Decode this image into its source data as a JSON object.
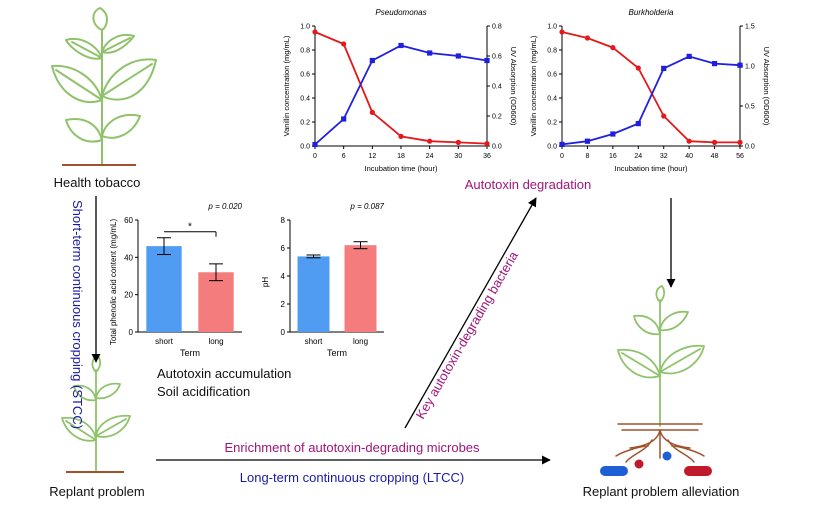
{
  "colors": {
    "plant_green": "#8fc36b",
    "plant_vein": "#7cb35a",
    "soil": "#a0522d",
    "red_series": "#e31a1c",
    "blue_series": "#1f1fe0",
    "bar_blue": "#4f9cf2",
    "bar_pink": "#f47c7c",
    "purple_text": "#a0157a",
    "blue_text": "#1a1aa8"
  },
  "labels": {
    "health_tobacco": "Health tobacco",
    "stcc": "Short-term continuous cropping (STCC)",
    "replant_problem": "Replant problem",
    "replant_alleviation": "Replant problem alleviation",
    "autotoxin_degradation": "Autotoxin degradation",
    "autotoxin_accumulation": "Autotoxin accumulation",
    "soil_acidification": "Soil acidification",
    "key_bacteria": "Key autotoxin-degrading bacteria",
    "enrichment": "Enrichment of autotoxin-degrading microbes",
    "ltcc": "Long-term continuous cropping (LTCC)"
  },
  "chart_data": [
    {
      "type": "line",
      "title": "Pseudomonas",
      "xlabel": "Incubation time (hour)",
      "ylabel": "Vanillin concentration (mg/mL)",
      "y2label": "UV Absorption (OD600)",
      "x": [
        0,
        6,
        12,
        18,
        24,
        30,
        36
      ],
      "xlim": [
        0,
        36
      ],
      "ylim": [
        0,
        1.0
      ],
      "y2lim": [
        0,
        0.8
      ],
      "yticks": [
        "0.0",
        "0.2",
        "0.4",
        "0.6",
        "0.8",
        "1.0"
      ],
      "y2ticks": [
        "0.0",
        "0.2",
        "0.4",
        "0.6",
        "0.8"
      ],
      "series": [
        {
          "name": "Vanillin concentration",
          "axis": "left",
          "color": "#e31a1c",
          "marker": "circle",
          "values": [
            0.95,
            0.85,
            0.28,
            0.08,
            0.04,
            0.03,
            0.02
          ]
        },
        {
          "name": "UV Absorption",
          "axis": "right",
          "color": "#1f1fe0",
          "marker": "square",
          "values": [
            0.01,
            0.18,
            0.57,
            0.67,
            0.62,
            0.6,
            0.57
          ]
        }
      ]
    },
    {
      "type": "line",
      "title": "Burkholderia",
      "xlabel": "Incubation time (hour)",
      "ylabel": "Vanillin concentration (mg/mL)",
      "y2label": "UV Absorption (OD600)",
      "x": [
        0,
        8,
        16,
        24,
        32,
        40,
        48,
        56
      ],
      "xlim": [
        0,
        56
      ],
      "ylim": [
        0,
        1.0
      ],
      "y2lim": [
        0,
        1.5
      ],
      "yticks": [
        "0.0",
        "0.2",
        "0.4",
        "0.6",
        "0.8",
        "1.0"
      ],
      "y2ticks": [
        "0.0",
        "0.5",
        "1.0",
        "1.5"
      ],
      "series": [
        {
          "name": "Vanillin concentration",
          "axis": "left",
          "color": "#e31a1c",
          "marker": "circle",
          "values": [
            0.95,
            0.9,
            0.82,
            0.65,
            0.25,
            0.04,
            0.03,
            0.03
          ]
        },
        {
          "name": "UV Absorption",
          "axis": "right",
          "color": "#1f1fe0",
          "marker": "square",
          "values": [
            0.02,
            0.06,
            0.15,
            0.28,
            0.97,
            1.12,
            1.03,
            1.01
          ]
        }
      ]
    },
    {
      "type": "bar",
      "title": "p = 0.020",
      "significance": "*",
      "xlabel": "Term",
      "ylabel": "Total phenolic acid content (mg/mL)",
      "categories": [
        "short",
        "long"
      ],
      "values": [
        46,
        32
      ],
      "errors": [
        4.5,
        4.5
      ],
      "ylim": [
        0,
        60
      ],
      "yticks": [
        "0",
        "20",
        "40",
        "60"
      ],
      "colors": [
        "#4f9cf2",
        "#f47c7c"
      ]
    },
    {
      "type": "bar",
      "title": "p = 0.087",
      "xlabel": "Term",
      "ylabel": "pH",
      "categories": [
        "short",
        "long"
      ],
      "values": [
        5.4,
        6.2
      ],
      "errors": [
        0.1,
        0.25
      ],
      "ylim": [
        0,
        8
      ],
      "yticks": [
        "0",
        "2",
        "4",
        "6",
        "8"
      ],
      "colors": [
        "#4f9cf2",
        "#f47c7c"
      ]
    }
  ]
}
